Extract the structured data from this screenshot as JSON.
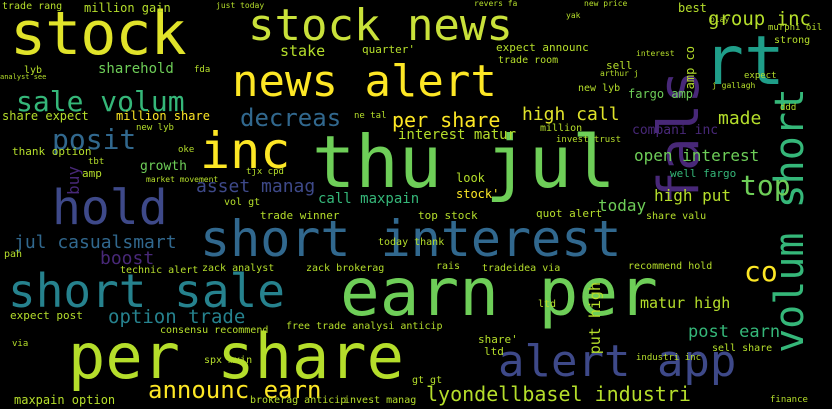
{
  "image": {
    "background": "#000000",
    "palette": [
      "#fde725",
      "#b5de2b",
      "#6ece58",
      "#35b779",
      "#1f9e89",
      "#26828e",
      "#31688e",
      "#3e4989",
      "#482878",
      "#440154"
    ]
  },
  "words": [
    {
      "text": "stock"
    },
    {
      "text": "stock news"
    },
    {
      "text": "news alert"
    },
    {
      "text": "rt"
    },
    {
      "text": "fals"
    },
    {
      "text": "thu jul"
    },
    {
      "text": "inc"
    },
    {
      "text": "hold"
    },
    {
      "text": "short interest"
    },
    {
      "text": "earn per"
    },
    {
      "text": "short sale"
    },
    {
      "text": "per share"
    },
    {
      "text": "alert app"
    },
    {
      "text": "volum short"
    },
    {
      "text": "announc earn"
    },
    {
      "text": "lyondellbasel industri"
    },
    {
      "text": "sale volum"
    },
    {
      "text": "group inc"
    },
    {
      "text": "option trade"
    },
    {
      "text": "posit"
    },
    {
      "text": "decreas"
    },
    {
      "text": "per share"
    },
    {
      "text": "high call"
    },
    {
      "text": "made"
    },
    {
      "text": "open interest"
    },
    {
      "text": "top"
    },
    {
      "text": "high put"
    },
    {
      "text": "asset manag"
    },
    {
      "text": "jul casualsmart"
    },
    {
      "text": "boost"
    },
    {
      "text": "call maxpain"
    },
    {
      "text": "today"
    },
    {
      "text": "co"
    },
    {
      "text": "post earn"
    },
    {
      "text": "matur high"
    },
    {
      "text": "put high"
    },
    {
      "text": "interest matur"
    },
    {
      "text": "sharehold"
    },
    {
      "text": "stake"
    },
    {
      "text": "share expect"
    },
    {
      "text": "growth"
    },
    {
      "text": "buy"
    },
    {
      "text": "fargo amp"
    },
    {
      "text": "well fargo"
    },
    {
      "text": "compani inc"
    },
    {
      "text": "million share"
    },
    {
      "text": "expect announc"
    },
    {
      "text": "quot alert"
    },
    {
      "text": "stock'"
    },
    {
      "text": "top stock"
    },
    {
      "text": "trade winner"
    },
    {
      "text": "zack analyst"
    },
    {
      "text": "zack brokerag"
    },
    {
      "text": "technic alert"
    },
    {
      "text": "today thank"
    },
    {
      "text": "tradeidea via"
    },
    {
      "text": "recommend hold"
    },
    {
      "text": "expect post"
    },
    {
      "text": "consensu recommend"
    },
    {
      "text": "free trade analysi anticip"
    },
    {
      "text": "spx mxin"
    },
    {
      "text": "maxpain option"
    },
    {
      "text": "brokerag anticip"
    },
    {
      "text": "invest manag"
    },
    {
      "text": "sell share"
    },
    {
      "text": "trade rang"
    },
    {
      "text": "million gain"
    },
    {
      "text": "quarter'"
    },
    {
      "text": "trade room"
    },
    {
      "text": "best"
    },
    {
      "text": "sell"
    },
    {
      "text": "expect"
    },
    {
      "text": "million"
    },
    {
      "text": "look"
    },
    {
      "text": "vol gt"
    },
    {
      "text": "thank option"
    },
    {
      "text": "share'"
    },
    {
      "text": "ltd"
    },
    {
      "text": "gt gt"
    },
    {
      "text": "ltd"
    },
    {
      "text": "rais"
    },
    {
      "text": "market movement"
    },
    {
      "text": "lyb"
    },
    {
      "text": "new lyb"
    },
    {
      "text": "new lyb"
    },
    {
      "text": "amp"
    },
    {
      "text": "pah"
    },
    {
      "text": "invest trust"
    },
    {
      "text": "industri inc"
    },
    {
      "text": "share valu"
    },
    {
      "text": "strong"
    },
    {
      "text": "play"
    },
    {
      "text": "just today"
    },
    {
      "text": "revers fa"
    },
    {
      "text": "new price"
    },
    {
      "text": "analyst see"
    },
    {
      "text": "murphi oil"
    },
    {
      "text": "arthur j"
    },
    {
      "text": "j gallagh"
    },
    {
      "text": "interest"
    },
    {
      "text": "amp co"
    },
    {
      "text": "via"
    },
    {
      "text": "fda"
    },
    {
      "text": "tbt"
    },
    {
      "text": "ddd"
    },
    {
      "text": "oke"
    },
    {
      "text": "tjx cpd"
    },
    {
      "text": "ne tal"
    },
    {
      "text": "yak"
    },
    {
      "text": "finance"
    }
  ]
}
